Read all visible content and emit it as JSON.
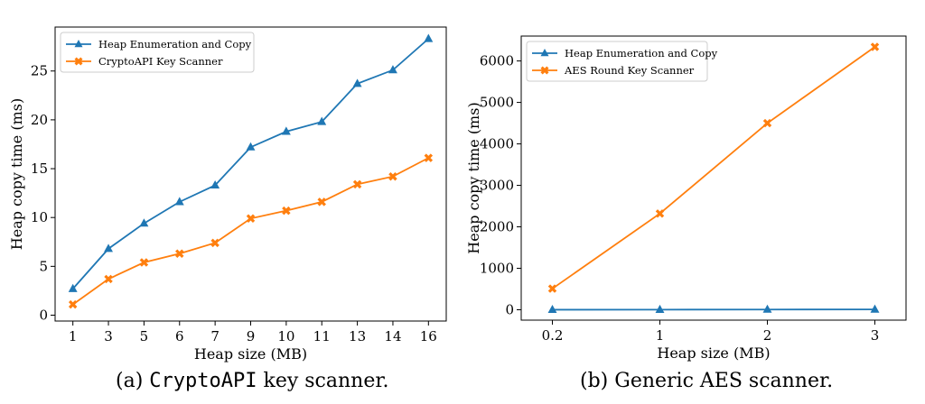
{
  "colors": {
    "series1": "#1f77b4",
    "series2": "#ff7f0e"
  },
  "captions": {
    "a": {
      "prefix": "(a) ",
      "mono": "CryptoAPI",
      "suffix": " key scanner."
    },
    "b": {
      "text": "(b) Generic AES scanner."
    }
  },
  "chart_data": [
    {
      "type": "line",
      "xlabel": "Heap size (MB)",
      "ylabel": "Heap copy time (ms)",
      "categories": [
        "1",
        "3",
        "5",
        "6",
        "7",
        "9",
        "10",
        "11",
        "13",
        "14",
        "16"
      ],
      "ylim": [
        -0.6,
        29.5
      ],
      "yticks": [
        0,
        5,
        10,
        15,
        20,
        25
      ],
      "legend_position": "top-left",
      "grid": false,
      "series": [
        {
          "name": "Heap Enumeration and Copy",
          "marker": "triangle",
          "values": [
            2.7,
            6.8,
            9.4,
            11.6,
            13.3,
            17.2,
            18.8,
            19.8,
            23.7,
            25.1,
            28.3
          ]
        },
        {
          "name": "CryptoAPI Key Scanner",
          "marker": "x",
          "values": [
            1.1,
            3.7,
            5.4,
            6.3,
            7.4,
            9.9,
            10.7,
            11.6,
            13.4,
            14.2,
            16.1
          ]
        }
      ]
    },
    {
      "type": "line",
      "xlabel": "Heap size (MB)",
      "ylabel": "Heap copy time (ms)",
      "categories": [
        "0.2",
        "1",
        "2",
        "3"
      ],
      "ylim": [
        -250,
        6600
      ],
      "yticks": [
        0,
        1000,
        2000,
        3000,
        4000,
        5000,
        6000
      ],
      "legend_position": "top-left",
      "grid": false,
      "series": [
        {
          "name": "Heap Enumeration and Copy",
          "marker": "triangle",
          "values": [
            1,
            3,
            6,
            8
          ]
        },
        {
          "name": "AES Round Key Scanner",
          "marker": "x",
          "values": [
            510,
            2320,
            4500,
            6340
          ]
        }
      ]
    }
  ]
}
